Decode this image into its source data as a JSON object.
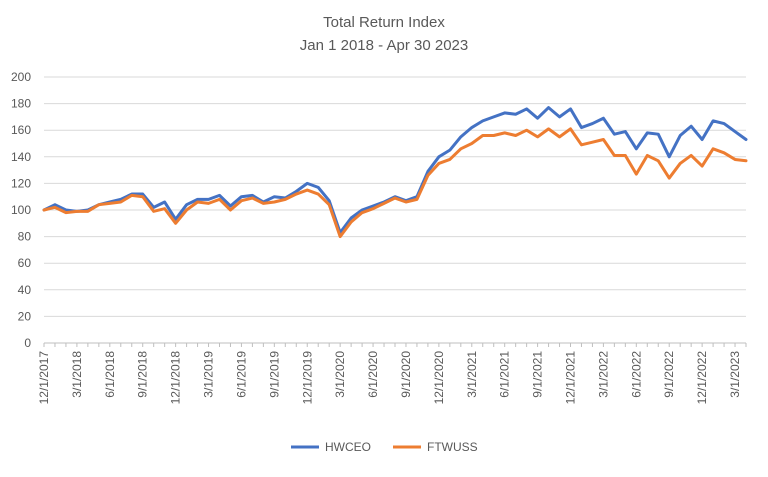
{
  "chart_data": {
    "type": "line",
    "title": "Total Return Index",
    "subtitle": "Jan 1 2018 - Apr 30 2023",
    "xlabel": "",
    "ylabel": "",
    "ylim": [
      0,
      200
    ],
    "y_ticks": [
      0,
      20,
      40,
      60,
      80,
      100,
      120,
      140,
      160,
      180,
      200
    ],
    "grid": true,
    "legend_position": "bottom",
    "x_tick_labels": [
      "12/1/2017",
      "3/1/2018",
      "6/1/2018",
      "9/1/2018",
      "12/1/2018",
      "3/1/2019",
      "6/1/2019",
      "9/1/2019",
      "12/1/2019",
      "3/1/2020",
      "6/1/2020",
      "9/1/2020",
      "12/1/2020",
      "3/1/2021",
      "6/1/2021",
      "9/1/2021",
      "12/1/2021",
      "3/1/2022",
      "6/1/2022",
      "9/1/2022",
      "12/1/2022",
      "3/1/2023"
    ],
    "series": [
      {
        "name": "HWCEO",
        "color": "#4472C4",
        "values": [
          100,
          104,
          100,
          99,
          100,
          104,
          106,
          108,
          112,
          112,
          102,
          106,
          93,
          104,
          108,
          108,
          111,
          103,
          110,
          111,
          106,
          110,
          109,
          114,
          120,
          117,
          107,
          83,
          94,
          100,
          103,
          106,
          110,
          107,
          110,
          129,
          140,
          145,
          155,
          162,
          167,
          170,
          173,
          172,
          176,
          169,
          177,
          170,
          176,
          162,
          165,
          169,
          157,
          159,
          146,
          158,
          157,
          140,
          156,
          163,
          153,
          167,
          165,
          159,
          153
        ],
        "label_interval": 3
      },
      {
        "name": "FTWUSS",
        "color": "#ED7D31",
        "values": [
          100,
          102,
          98,
          99,
          99,
          104,
          105,
          106,
          111,
          110,
          99,
          101,
          90,
          100,
          106,
          105,
          108,
          100,
          107,
          109,
          105,
          106,
          108,
          112,
          115,
          112,
          104,
          80,
          91,
          98,
          101,
          105,
          109,
          106,
          108,
          126,
          135,
          138,
          146,
          150,
          156,
          156,
          158,
          156,
          160,
          155,
          161,
          155,
          161,
          149,
          151,
          153,
          141,
          141,
          127,
          141,
          137,
          124,
          135,
          141,
          133,
          146,
          143,
          138,
          137
        ]
      }
    ]
  }
}
